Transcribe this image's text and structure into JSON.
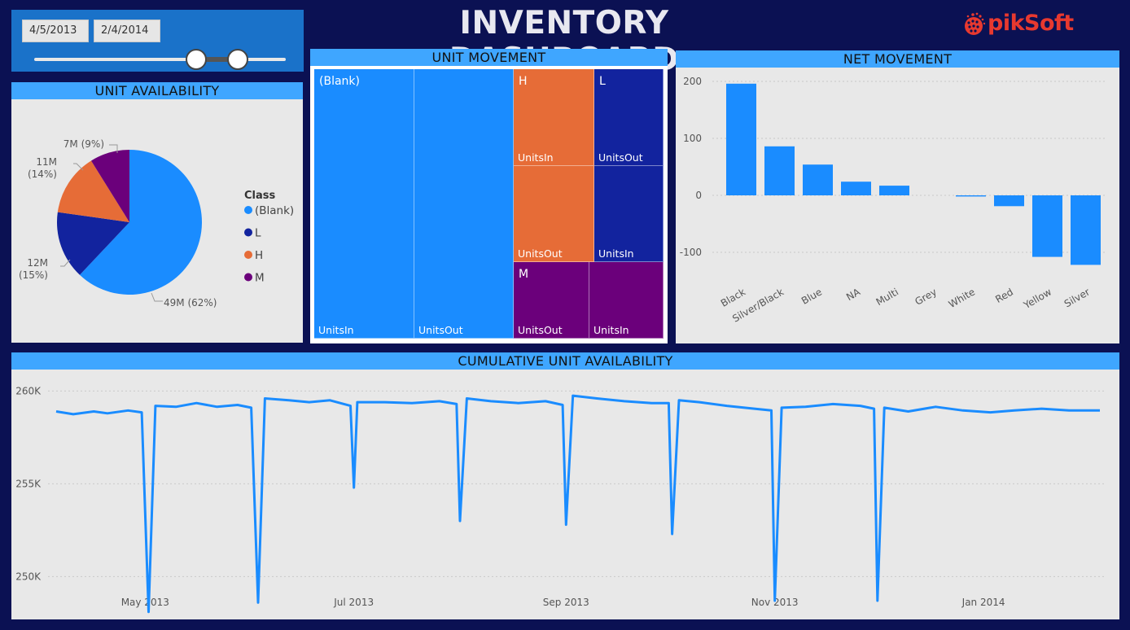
{
  "header": {
    "title": "INVENTORY DASHBOARD",
    "logo_text": "pikSoft"
  },
  "slicer": {
    "start_date": "4/5/2013",
    "end_date": "2/4/2014"
  },
  "colors": {
    "background": "#0b1153",
    "blank": "#1a8cff",
    "L": "#12239e",
    "H": "#e66c37",
    "M": "#6b007b",
    "header_bar": "#3fa6ff",
    "logo": "#e8392f"
  },
  "unit_availability": {
    "title": "UNIT AVAILABILITY",
    "legend_title": "Class",
    "chart_data": {
      "type": "pie",
      "slices": [
        {
          "name": "(Blank)",
          "value": 49,
          "percent": 62,
          "label_top": "49M (62%)",
          "label_bottom": ""
        },
        {
          "name": "L",
          "value": 12,
          "percent": 15,
          "label_top": "12M",
          "label_bottom": "(15%)"
        },
        {
          "name": "H",
          "value": 11,
          "percent": 14,
          "label_top": "11M",
          "label_bottom": "(14%)"
        },
        {
          "name": "M",
          "value": 7,
          "percent": 9,
          "label_top": "7M (9%)",
          "label_bottom": ""
        }
      ]
    }
  },
  "unit_movement": {
    "title": "UNIT MOVEMENT",
    "groups": [
      {
        "name": "(Blank)",
        "tiles": [
          "UnitsIn",
          "UnitsOut"
        ]
      },
      {
        "name": "H",
        "tiles": [
          "UnitsIn",
          "UnitsOut"
        ]
      },
      {
        "name": "L",
        "tiles": [
          "UnitsOut",
          "UnitsIn"
        ]
      },
      {
        "name": "M",
        "tiles": [
          "UnitsOut",
          "UnitsIn"
        ]
      }
    ]
  },
  "net_movement": {
    "title": "NET MOVEMENT",
    "chart_data": {
      "type": "bar",
      "categories": [
        "Black",
        "Silver/Black",
        "Blue",
        "NA",
        "Multi",
        "Grey",
        "White",
        "Red",
        "Yellow",
        "Silver"
      ],
      "values": [
        196,
        86,
        54,
        24,
        17,
        0,
        -2,
        -19,
        -108,
        -122
      ],
      "ylim": [
        -140,
        215
      ],
      "yticks": [
        200,
        100,
        0,
        -100
      ],
      "ytick_labels": [
        "200",
        "100",
        "0",
        "-100"
      ],
      "grid": true
    }
  },
  "cumulative": {
    "title": "CUMULATIVE UNIT AVAILABILITY",
    "chart_data": {
      "type": "line",
      "x_range": [
        "2013-04-05",
        "2014-02-04"
      ],
      "ylim": [
        248000,
        260500
      ],
      "yticks": [
        260000,
        255000,
        250000
      ],
      "ytick_labels": [
        "260K",
        "255K",
        "250K"
      ],
      "xtick_labels": [
        "May 2013",
        "Jul 2013",
        "Sep 2013",
        "Nov 2013",
        "Jan 2014"
      ],
      "xtick_dates": [
        "2013-05-01",
        "2013-07-01",
        "2013-09-01",
        "2013-11-01",
        "2014-01-01"
      ],
      "baseline": [
        [
          "2013-04-05",
          258900
        ],
        [
          "2013-04-10",
          258750
        ],
        [
          "2013-04-16",
          258900
        ],
        [
          "2013-04-20",
          258800
        ],
        [
          "2013-04-26",
          258950
        ],
        [
          "2013-04-30",
          258850
        ],
        [
          "2013-05-02",
          248100
        ],
        [
          "2013-05-04",
          259200
        ],
        [
          "2013-05-10",
          259150
        ],
        [
          "2013-05-16",
          259350
        ],
        [
          "2013-05-22",
          259150
        ],
        [
          "2013-05-28",
          259250
        ],
        [
          "2013-06-01",
          259100
        ],
        [
          "2013-06-03",
          248600
        ],
        [
          "2013-06-05",
          259600
        ],
        [
          "2013-06-12",
          259500
        ],
        [
          "2013-06-18",
          259400
        ],
        [
          "2013-06-24",
          259500
        ],
        [
          "2013-06-30",
          259200
        ],
        [
          "2013-07-01",
          254800
        ],
        [
          "2013-07-02",
          259400
        ],
        [
          "2013-07-10",
          259400
        ],
        [
          "2013-07-18",
          259350
        ],
        [
          "2013-07-26",
          259450
        ],
        [
          "2013-07-31",
          259300
        ],
        [
          "2013-08-01",
          253000
        ],
        [
          "2013-08-03",
          259600
        ],
        [
          "2013-08-10",
          259450
        ],
        [
          "2013-08-18",
          259350
        ],
        [
          "2013-08-26",
          259450
        ],
        [
          "2013-08-31",
          259250
        ],
        [
          "2013-09-01",
          252800
        ],
        [
          "2013-09-03",
          259750
        ],
        [
          "2013-09-10",
          259600
        ],
        [
          "2013-09-18",
          259450
        ],
        [
          "2013-09-26",
          259350
        ],
        [
          "2013-10-01",
          259350
        ],
        [
          "2013-10-02",
          252300
        ],
        [
          "2013-10-04",
          259500
        ],
        [
          "2013-10-10",
          259400
        ],
        [
          "2013-10-18",
          259200
        ],
        [
          "2013-10-26",
          259050
        ],
        [
          "2013-10-31",
          258950
        ],
        [
          "2013-11-01",
          248700
        ],
        [
          "2013-11-03",
          259100
        ],
        [
          "2013-11-10",
          259150
        ],
        [
          "2013-11-18",
          259300
        ],
        [
          "2013-11-26",
          259200
        ],
        [
          "2013-11-30",
          259050
        ],
        [
          "2013-12-01",
          248700
        ],
        [
          "2013-12-03",
          259100
        ],
        [
          "2013-12-10",
          258900
        ],
        [
          "2013-12-18",
          259150
        ],
        [
          "2013-12-26",
          258950
        ],
        [
          "2014-01-03",
          258850
        ],
        [
          "2014-01-10",
          258950
        ],
        [
          "2014-01-18",
          259050
        ],
        [
          "2014-01-26",
          258950
        ],
        [
          "2014-02-04",
          258950
        ]
      ]
    }
  }
}
